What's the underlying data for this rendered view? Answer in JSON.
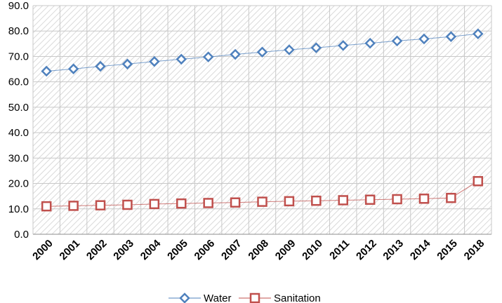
{
  "chart_data": {
    "type": "line",
    "categories": [
      "2000",
      "2001",
      "2002",
      "2003",
      "2004",
      "2005",
      "2006",
      "2007",
      "2008",
      "2009",
      "2010",
      "2011",
      "2012",
      "2013",
      "2014",
      "2015",
      "2018"
    ],
    "series": [
      {
        "name": "Water",
        "values": [
          64.2,
          65.1,
          66.1,
          67.0,
          68.0,
          68.9,
          69.8,
          70.8,
          71.7,
          72.6,
          73.4,
          74.3,
          75.2,
          76.1,
          76.9,
          77.8,
          78.9
        ],
        "color": "#4f81bd",
        "marker": "diamond"
      },
      {
        "name": "Sanitation",
        "values": [
          11.0,
          11.2,
          11.4,
          11.6,
          11.9,
          12.1,
          12.3,
          12.5,
          12.8,
          13.0,
          13.2,
          13.4,
          13.6,
          13.8,
          14.0,
          14.3,
          20.9
        ],
        "color": "#c0504d",
        "marker": "square"
      }
    ],
    "ylim": [
      0,
      90
    ],
    "yticks": [
      "0.0",
      "10.0",
      "20.0",
      "30.0",
      "40.0",
      "50.0",
      "60.0",
      "70.0",
      "80.0",
      "90.0"
    ],
    "grid": true,
    "legend": "bottom-center",
    "title": "",
    "xlabel": "",
    "ylabel": ""
  }
}
